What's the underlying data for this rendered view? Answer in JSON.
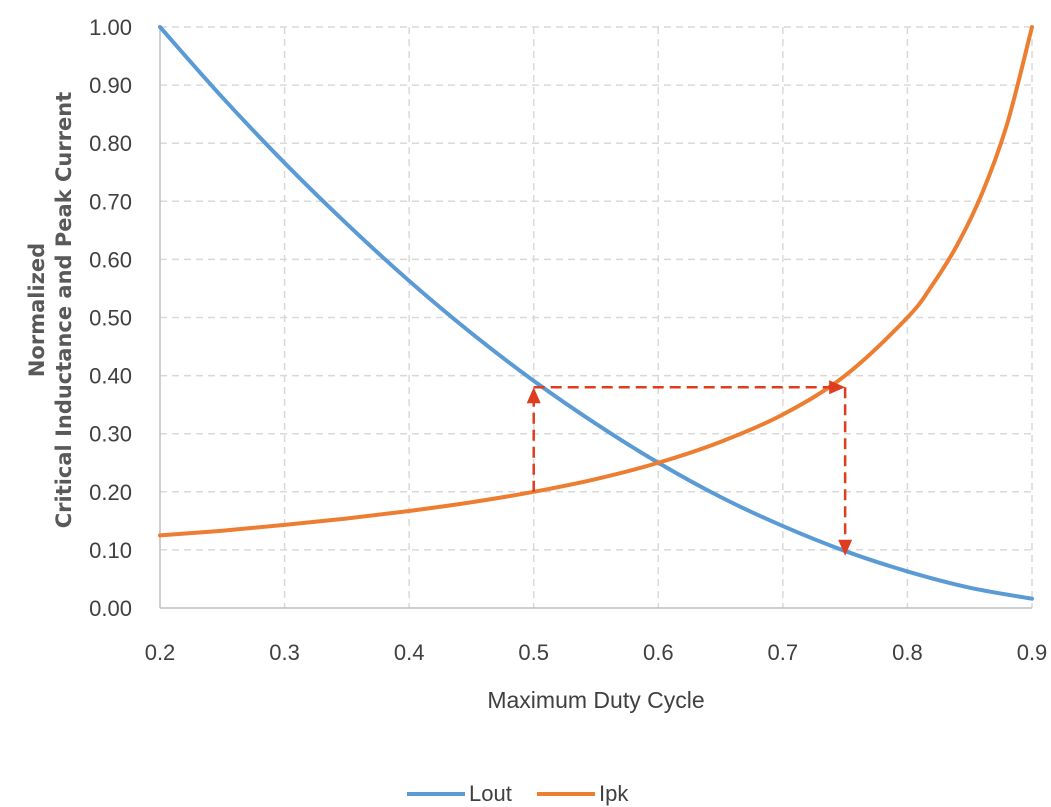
{
  "chart_data": {
    "type": "line",
    "xlabel": "Maximum Duty Cycle",
    "ylabel_lines": [
      "Normalized",
      "Critical Inductance and Peak Current"
    ],
    "xlim": [
      0.2,
      0.9
    ],
    "ylim": [
      0.0,
      1.0
    ],
    "x_ticks": [
      "0.2",
      "0.3",
      "0.4",
      "0.5",
      "0.6",
      "0.7",
      "0.8",
      "0.9"
    ],
    "y_ticks": [
      "0.00",
      "0.10",
      "0.20",
      "0.30",
      "0.40",
      "0.50",
      "0.60",
      "0.70",
      "0.80",
      "0.90",
      "1.00"
    ],
    "grid": true,
    "legend_position": "bottom-center",
    "series": [
      {
        "name": "Lout",
        "color": "#5B9BD5",
        "x": [
          0.2,
          0.25,
          0.3,
          0.35,
          0.4,
          0.45,
          0.5,
          0.55,
          0.6,
          0.65,
          0.7,
          0.75,
          0.8,
          0.85,
          0.9
        ],
        "y": [
          1.0,
          0.879,
          0.766,
          0.661,
          0.563,
          0.473,
          0.391,
          0.317,
          0.25,
          0.191,
          0.141,
          0.098,
          0.063,
          0.035,
          0.016
        ]
      },
      {
        "name": "Ipk",
        "color": "#ED7D31",
        "x": [
          0.2,
          0.25,
          0.3,
          0.35,
          0.4,
          0.45,
          0.5,
          0.55,
          0.6,
          0.65,
          0.7,
          0.75,
          0.8,
          0.82,
          0.84,
          0.86,
          0.88,
          0.9
        ],
        "y": [
          0.125,
          0.133,
          0.143,
          0.154,
          0.167,
          0.182,
          0.2,
          0.222,
          0.25,
          0.286,
          0.333,
          0.4,
          0.5,
          0.556,
          0.625,
          0.714,
          0.833,
          1.0
        ]
      }
    ],
    "annotations": {
      "color": "#E03C20",
      "path": [
        {
          "x": 0.5,
          "y": 0.2
        },
        {
          "x": 0.5,
          "y": 0.38
        },
        {
          "x": 0.75,
          "y": 0.38
        },
        {
          "x": 0.75,
          "y": 0.09
        }
      ],
      "arrow_at_points": [
        1,
        2,
        3
      ]
    }
  }
}
